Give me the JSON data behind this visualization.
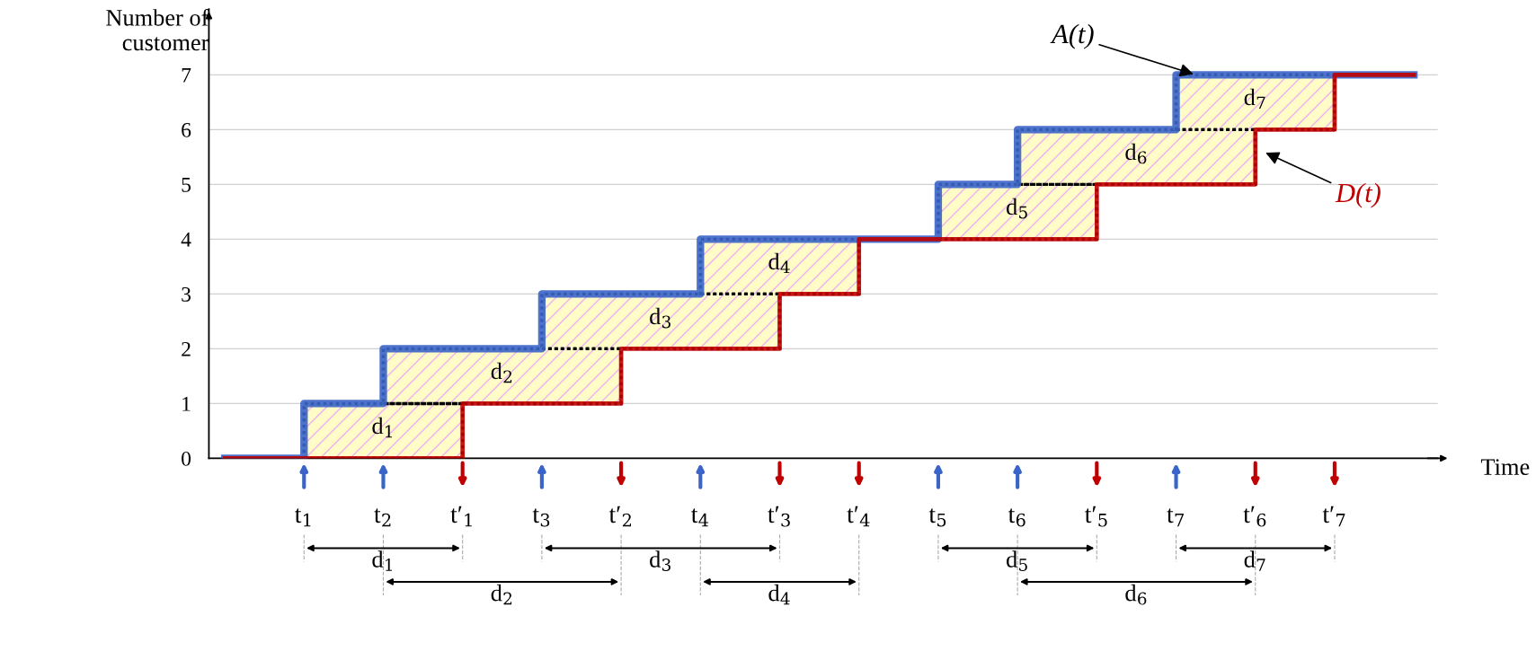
{
  "chart_data": {
    "type": "step",
    "ylabel": "Number of\ncustomer",
    "xlabel": "Time",
    "categories": [
      null,
      "t$_{1}$",
      "t$_{2}$",
      "t′$_{1}$",
      "t$_{3}$",
      "t′$_{2}$",
      "t$_{4}$",
      "t′$_{3}$",
      "t′$_{4}$",
      "t$_{5}$",
      "t$_{6}$",
      "t′$_{5}$",
      "t$_{7}$",
      "t′$_{6}$",
      "t′$_{7}$",
      null
    ],
    "series": [
      {
        "name": "A(t)",
        "color": "#3a64c8",
        "values": [
          0,
          1,
          2,
          2,
          3,
          3,
          4,
          4,
          4,
          5,
          6,
          6,
          7,
          7,
          7,
          7
        ]
      },
      {
        "name": "D(t)",
        "color": "#c00000",
        "values": [
          0,
          0,
          0,
          1,
          1,
          2,
          2,
          3,
          4,
          4,
          4,
          5,
          5,
          6,
          7,
          7
        ]
      }
    ],
    "annotations": [
      "d$_{1}$",
      "d$_{2}$",
      "d$_{3}$",
      "d$_{4}$",
      "d$_{5}$",
      "d$_{6}$",
      "d$_{7}$",
      "d$_{1}$",
      "d$_{2}$",
      "d$_{3}$",
      "d$_{4}$",
      "d$_{5}$",
      "d$_{6}$",
      "d$_{7}$"
    ],
    "ylim": [
      0,
      8.2
    ],
    "yticks": [
      0,
      1,
      2,
      3,
      4,
      5,
      6,
      7
    ],
    "grid": "y",
    "legend": false
  }
}
